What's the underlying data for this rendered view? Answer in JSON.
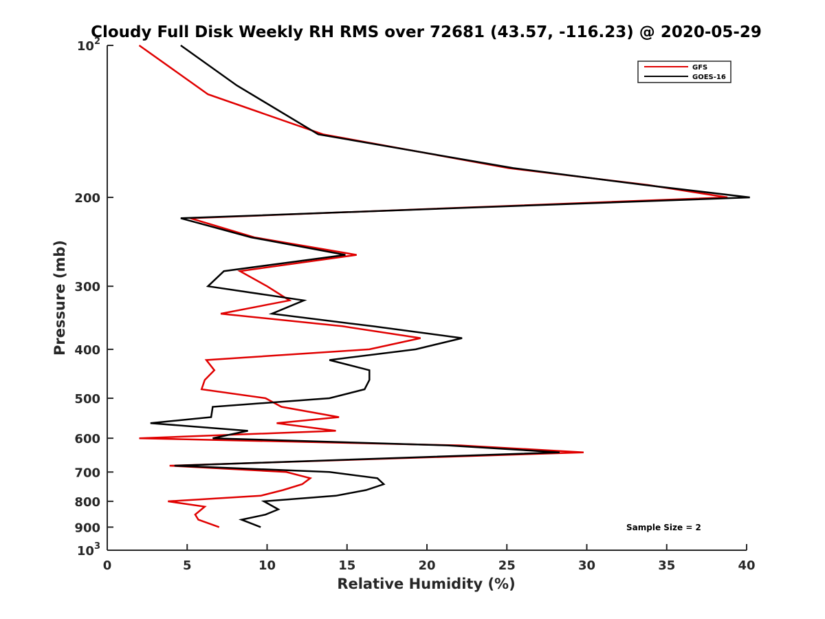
{
  "chart_data": {
    "type": "line",
    "title": "Cloudy Full Disk Weekly RH RMS over 72681 (43.57, -116.23) @ 2020-05-29",
    "xlabel": "Relative Humidity (%)",
    "ylabel": "Pressure (mb)",
    "xlim": [
      0,
      40
    ],
    "ylim": [
      100,
      1000
    ],
    "y_scale": "log",
    "y_reversed": true,
    "x_ticks": [
      "0",
      "5",
      "10",
      "15",
      "20",
      "25",
      "30",
      "35",
      "40"
    ],
    "y_ticks": [
      {
        "value": 100,
        "base": "10",
        "exp": "2"
      },
      {
        "value": 200,
        "label": "200"
      },
      {
        "value": 300,
        "label": "300"
      },
      {
        "value": 400,
        "label": "400"
      },
      {
        "value": 500,
        "label": "500"
      },
      {
        "value": 600,
        "label": "600"
      },
      {
        "value": 700,
        "label": "700"
      },
      {
        "value": 800,
        "label": "800"
      },
      {
        "value": 900,
        "label": "900"
      },
      {
        "value": 1000,
        "base": "10",
        "exp": "3"
      }
    ],
    "grid": false,
    "legend_position": "top-right",
    "annotation": "Sample Size = 2",
    "series": [
      {
        "name": "GFS",
        "color": "#e00000",
        "points": [
          [
            2.0,
            100
          ],
          [
            6.3,
            125
          ],
          [
            13.5,
            150
          ],
          [
            25.1,
            175
          ],
          [
            33.8,
            189
          ],
          [
            38.8,
            200
          ],
          [
            5.2,
            220
          ],
          [
            9.2,
            240
          ],
          [
            15.6,
            260
          ],
          [
            8.3,
            280
          ],
          [
            10.0,
            300
          ],
          [
            11.4,
            320
          ],
          [
            7.1,
            340
          ],
          [
            14.7,
            360
          ],
          [
            19.6,
            380
          ],
          [
            16.4,
            400
          ],
          [
            6.2,
            420
          ],
          [
            6.7,
            440
          ],
          [
            6.1,
            460
          ],
          [
            5.9,
            480
          ],
          [
            9.9,
            500
          ],
          [
            10.9,
            520
          ],
          [
            14.5,
            545
          ],
          [
            10.6,
            560
          ],
          [
            14.3,
            580
          ],
          [
            2.0,
            600
          ],
          [
            22.1,
            620
          ],
          [
            29.8,
            640
          ],
          [
            3.9,
            680
          ],
          [
            11.2,
            700
          ],
          [
            12.7,
            720
          ],
          [
            12.2,
            740
          ],
          [
            11.0,
            760
          ],
          [
            9.6,
            780
          ],
          [
            3.8,
            800
          ],
          [
            6.1,
            820
          ],
          [
            5.5,
            850
          ],
          [
            5.7,
            870
          ],
          [
            7.0,
            900
          ]
        ]
      },
      {
        "name": "GOES-16",
        "color": "#000000",
        "points": [
          [
            4.6,
            100
          ],
          [
            8.1,
            120
          ],
          [
            13.2,
            150
          ],
          [
            25.4,
            175
          ],
          [
            33.6,
            189
          ],
          [
            40.2,
            200
          ],
          [
            4.6,
            220
          ],
          [
            9.0,
            240
          ],
          [
            14.9,
            260
          ],
          [
            7.3,
            280
          ],
          [
            6.3,
            300
          ],
          [
            12.3,
            320
          ],
          [
            10.3,
            340
          ],
          [
            16.6,
            360
          ],
          [
            22.2,
            380
          ],
          [
            19.3,
            400
          ],
          [
            13.9,
            420
          ],
          [
            16.4,
            440
          ],
          [
            16.4,
            460
          ],
          [
            16.1,
            480
          ],
          [
            13.9,
            500
          ],
          [
            6.6,
            520
          ],
          [
            6.5,
            545
          ],
          [
            2.7,
            560
          ],
          [
            8.8,
            580
          ],
          [
            6.6,
            600
          ],
          [
            21.3,
            620
          ],
          [
            28.3,
            640
          ],
          [
            4.2,
            680
          ],
          [
            13.9,
            700
          ],
          [
            16.9,
            720
          ],
          [
            17.3,
            740
          ],
          [
            16.2,
            760
          ],
          [
            14.3,
            780
          ],
          [
            9.8,
            800
          ],
          [
            10.7,
            830
          ],
          [
            9.9,
            850
          ],
          [
            8.4,
            870
          ],
          [
            9.6,
            900
          ]
        ]
      }
    ]
  }
}
